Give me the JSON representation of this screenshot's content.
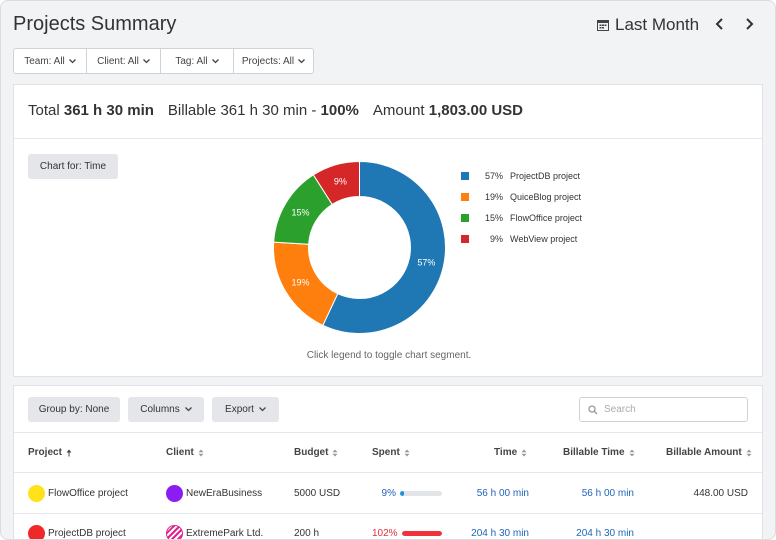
{
  "page_title": "Projects Summary",
  "date_range": "Last Month",
  "filters": [
    {
      "label": "Team: All"
    },
    {
      "label": "Client: All"
    },
    {
      "label": "Tag: All"
    },
    {
      "label": "Projects: All"
    }
  ],
  "totals": {
    "total_label": "Total",
    "total_value": "361 h 30 min",
    "billable_label": "Billable",
    "billable_value": "361 h 30 min",
    "billable_sep": " - ",
    "billable_pct": "100%",
    "amount_label": "Amount",
    "amount_value": "1,803.00 USD"
  },
  "chart_for_label": "Chart for: Time",
  "chart_hint": "Click legend to toggle chart segment.",
  "chart_data": {
    "type": "pie",
    "variant": "donut",
    "slices": [
      {
        "name": "ProjectDB project",
        "value": 57,
        "label": "57%",
        "color": "#1f77b4"
      },
      {
        "name": "QuiceBlog project",
        "value": 19,
        "label": "19%",
        "color": "#ff7f0e"
      },
      {
        "name": "FlowOffice project",
        "value": 15,
        "label": "15%",
        "color": "#2ca02c"
      },
      {
        "name": "WebView project",
        "value": 9,
        "label": "9%",
        "color": "#d62728"
      }
    ],
    "legend_position": "right"
  },
  "toolbar": {
    "group_by": "Group by: None",
    "columns": "Columns",
    "export": "Export",
    "search_placeholder": "Search"
  },
  "table": {
    "columns": [
      "Project",
      "Client",
      "Budget",
      "Spent",
      "Time",
      "Billable Time",
      "Billable Amount"
    ],
    "rows": [
      {
        "project": "FlowOffice project",
        "project_color": "#ffe21a",
        "client": "NewEraBusiness",
        "client_color": "#8b1cf2",
        "client_pattern": "solid",
        "budget": "5000 USD",
        "spent": "9%",
        "spent_value": 0.09,
        "spent_color": "#1f8fe0",
        "spent_text_color": "#1f64b8",
        "time": "56 h 00 min",
        "billable_time": "56 h 00 min",
        "billable_amount": "448.00 USD"
      },
      {
        "project": "ProjectDB project",
        "project_color": "#f0282a",
        "client": "ExtremePark Ltd.",
        "client_color": "#e0208c",
        "client_pattern": "striped",
        "budget": "200 h",
        "spent": "102%",
        "spent_value": 1.0,
        "spent_color": "#f0323c",
        "spent_text_color": "#e0323a",
        "time": "204 h 30 min",
        "billable_time": "204 h 30 min",
        "billable_amount": ""
      }
    ]
  },
  "colors": {
    "accent": "#1f64b8",
    "panel_bg": "#ffffff",
    "page_bg": "#f2f3f5"
  }
}
